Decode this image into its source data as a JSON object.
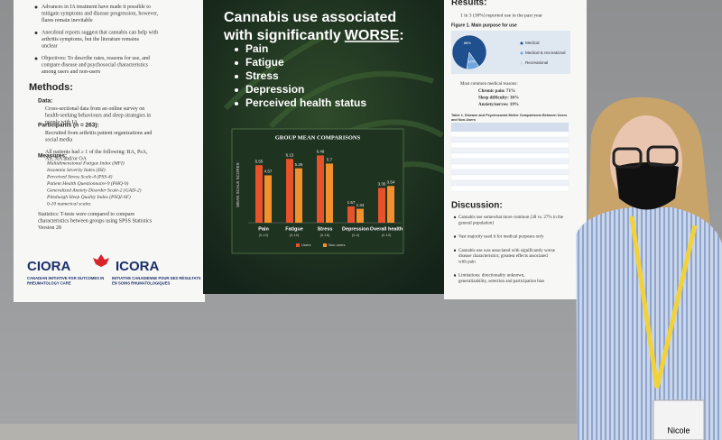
{
  "poster": {
    "left": {
      "intro": [
        "Advances in IA treatment have made it possible to mitigate symptoms and disease progression, however, flares remain inevitable",
        "Anecdotal reports suggest that cannabis can help with arthritis symptoms, but the literature remains unclear",
        "Objectives: To describe rates, reasons for use, and compare disease and psychosocial characteristics among users and non-users"
      ],
      "methods_heading": "Methods:",
      "data_heading": "Data:",
      "data_text": "Cross-sectional data from an online survey on health-seeking behaviours and sleep strategies in people with IA",
      "participants_heading": "Participants (n = 263):",
      "participants": [
        "Recruited from arthritis patient organizations and social media",
        "All patients had ≥ 1 of the following: RA, PsA, AS, JIA and/or OA"
      ],
      "measures_heading": "Measures:",
      "measures": [
        "Multidimensional Fatigue Index (MFI)",
        "Insomnia Severity Index (ISI)",
        "Perceived Stress Scale-4 (PSS-4)",
        "Patient Health Questionnaire-9 (PHQ-9)",
        "Generalized Anxiety Disorder Scale-2 (GAD-2)",
        "Pittsburgh Sleep Quality Index (PSQI-SF)",
        "0-10 numerical scales"
      ],
      "statistics": "Statistics: T-tests were compared to compare characteristics between groups using SPSS Statistics Version 28",
      "logo_en": "CIORA",
      "logo_fr": "ICORA",
      "logo_en_sub": "CANADIAN INITIATIVE FOR OUTCOMES IN RHEUMATOLOGY CARE",
      "logo_fr_sub": "INITIATIVE CANADIENNE POUR DES RÉSULTATS EN SOINS RHUMATOLOGIQUES"
    },
    "center": {
      "title_lines": [
        "Cannabis use associated",
        "with significantly "
      ],
      "title_emphasis": "WORSE",
      "title_end": ":",
      "outcomes": [
        "Pain",
        "Fatigue",
        "Stress",
        "Depression",
        "Perceived health status"
      ],
      "chart": {
        "title": "GROUP MEAN COMPARISONS",
        "y_label": "MEAN SCALE SCORES",
        "categories": [
          "Pain",
          "Fatigue",
          "Stress",
          "Depression",
          "Overall health"
        ],
        "ranges": [
          "(0-10)",
          "(0-10)",
          "(0-16)",
          "(0-3)",
          "(0-10)"
        ],
        "series": [
          {
            "name": "Users",
            "color": "#e8522b",
            "values": [
              5.55,
              6.15,
              6.49,
              1.57,
              3.35
            ]
          },
          {
            "name": "Non-users",
            "color": "#f4902c",
            "values": [
              4.57,
              5.25,
              5.7,
              1.34,
              3.54
            ]
          }
        ]
      }
    },
    "right": {
      "results_heading": "Results:",
      "results_text": "1 in 3 (38%) reported use in the past year",
      "figure_title": "Figure 1. Main purpose for use",
      "pie": {
        "labels": [
          "Medical",
          "Medical & recreational",
          "Recreational"
        ],
        "values": [
          88,
          12,
          0
        ],
        "value_labels": [
          "88%",
          "12%",
          null
        ],
        "colors": [
          "#1f4f8c",
          "#6fa6dd",
          "#c9d9ea"
        ]
      },
      "reasons_heading": "Most common medical reasons:",
      "reasons": [
        "Chronic pain: 71%",
        "Sleep difficulty: 36%",
        "Anxiety/nerves: 19%"
      ],
      "table_title": "Table 1. Disease and Psychosocial Metric Comparisons Between Users and Non-Users",
      "discussion_heading": "Discussion:",
      "discussion": [
        "Cannabis use somewhat more common (38 vs. 27% in the general population)",
        "Vast majority used it for medical purposes only",
        "Cannabis use was associated with significantly worse disease characteristics; greatest effects associated with pain",
        "Limitations: directionality unknown, generalizability, selection and participation bias"
      ]
    },
    "badge": "Nicole"
  }
}
